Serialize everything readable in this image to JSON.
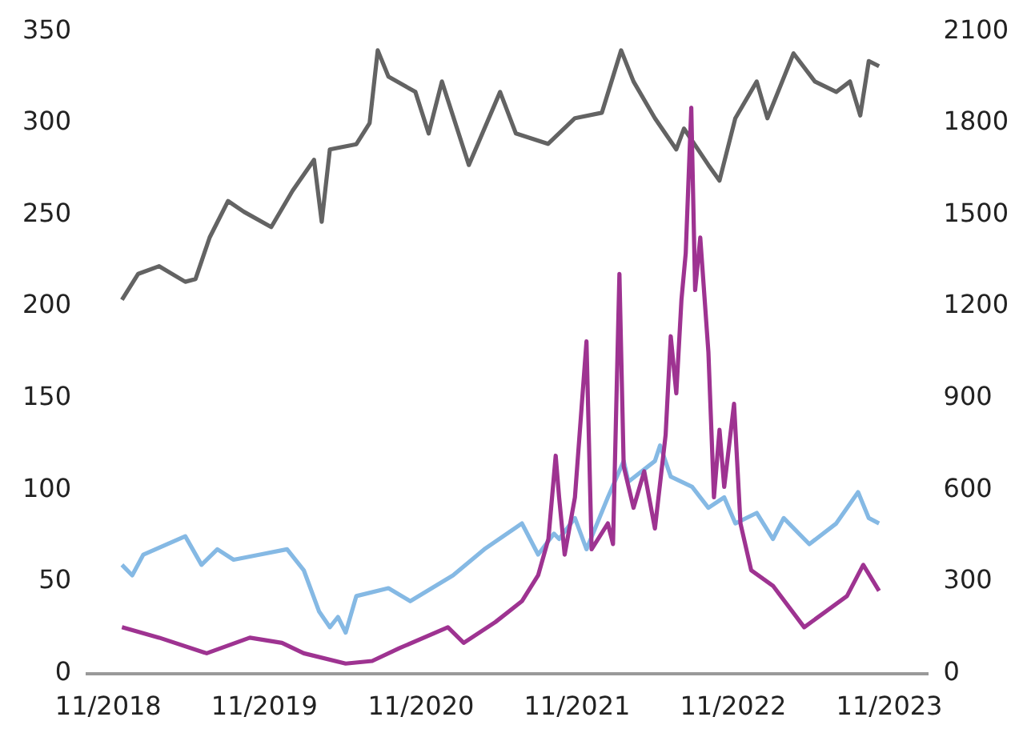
{
  "chart_data": {
    "type": "line",
    "xlim": [
      "2018-09-13",
      "2024-01-29"
    ],
    "xticks": [
      {
        "value": "2018-11-01",
        "label": "11/2018"
      },
      {
        "value": "2019-11-01",
        "label": "11/2019"
      },
      {
        "value": "2020-11-01",
        "label": "11/2020"
      },
      {
        "value": "2021-11-01",
        "label": "11/2021"
      },
      {
        "value": "2022-11-01",
        "label": "11/2022"
      },
      {
        "value": "2023-11-01",
        "label": "11/2023"
      }
    ],
    "ylim": [
      0,
      350
    ],
    "yticks": [
      0,
      50,
      100,
      150,
      200,
      250,
      300,
      350
    ],
    "y2lim": [
      0,
      2100
    ],
    "y2ticks": [
      0,
      300,
      600,
      900,
      1200,
      1500,
      1800,
      2100
    ],
    "grid": false,
    "legend": false,
    "marker": "none",
    "line_style": "solid",
    "series": [
      {
        "color": "#636363",
        "axis": "y2",
        "x": [
          "2018-12-03",
          "2019-01-10",
          "2019-02-28",
          "2019-04-30",
          "2019-05-24",
          "2019-06-26",
          "2019-08-08",
          "2019-09-14",
          "2019-11-17",
          "2020-01-06",
          "2020-02-25",
          "2020-03-14",
          "2020-04-02",
          "2020-06-03",
          "2020-07-04",
          "2020-07-23",
          "2020-08-17",
          "2020-10-19",
          "2020-11-19",
          "2020-12-20",
          "2021-02-21",
          "2021-05-05",
          "2021-06-11",
          "2021-08-25",
          "2021-10-27",
          "2021-12-29",
          "2022-02-12",
          "2022-03-13",
          "2022-05-02",
          "2022-06-21",
          "2022-07-09",
          "2022-09-04",
          "2022-09-30",
          "2022-11-06",
          "2022-12-26",
          "2023-01-20",
          "2023-03-22",
          "2023-05-11",
          "2023-06-30",
          "2023-08-01",
          "2023-08-25",
          "2023-09-14",
          "2023-10-08"
        ],
        "values": [
          1222,
          1307,
          1332,
          1281,
          1290,
          1426,
          1545,
          1510,
          1460,
          1579,
          1680,
          1477,
          1714,
          1731,
          1800,
          2038,
          1952,
          1902,
          1766,
          1936,
          1663,
          1902,
          1766,
          1732,
          1816,
          1834,
          2038,
          1936,
          1816,
          1714,
          1782,
          1663,
          1612,
          1816,
          1936,
          1816,
          2028,
          1936,
          1902,
          1936,
          1825,
          2003,
          1986
        ]
      },
      {
        "color": "#85b9e4",
        "axis": "y",
        "x": [
          "2018-12-03",
          "2018-12-27",
          "2019-01-22",
          "2019-04-30",
          "2019-06-07",
          "2019-07-14",
          "2019-08-21",
          "2019-10-22",
          "2019-12-24",
          "2020-02-01",
          "2020-03-08",
          "2020-04-02",
          "2020-04-21",
          "2020-05-09",
          "2020-06-03",
          "2020-08-17",
          "2020-10-07",
          "2021-01-15",
          "2021-03-29",
          "2021-06-25",
          "2021-08-02",
          "2021-09-08",
          "2021-09-20",
          "2021-10-27",
          "2021-11-23",
          "2022-01-12",
          "2022-02-18",
          "2022-03-01",
          "2022-05-02",
          "2022-05-14",
          "2022-06-08",
          "2022-07-28",
          "2022-09-04",
          "2022-10-11",
          "2022-11-06",
          "2022-12-26",
          "2023-02-02",
          "2023-02-27",
          "2023-04-28",
          "2023-06-30",
          "2023-08-20",
          "2023-09-14",
          "2023-10-08"
        ],
        "values": [
          59.2,
          53.5,
          64.8,
          74.8,
          59.2,
          67.7,
          62,
          64.8,
          67.7,
          56.3,
          33.7,
          25.2,
          30.8,
          22.3,
          42.2,
          46.5,
          39.4,
          53.5,
          67.7,
          81.8,
          64.8,
          76.2,
          73.3,
          84.7,
          67.7,
          96,
          115.8,
          104.5,
          115.8,
          124.3,
          107.3,
          101.7,
          90.3,
          96,
          81.8,
          87.5,
          73.3,
          84.7,
          70.5,
          81.8,
          98.8,
          84.7,
          81.8
        ]
      },
      {
        "color": "#9e3391",
        "axis": "y",
        "x": [
          "2018-12-03",
          "2019-02-28",
          "2019-06-19",
          "2019-09-28",
          "2019-12-12",
          "2020-02-01",
          "2020-05-09",
          "2020-07-10",
          "2020-09-12",
          "2021-01-03",
          "2021-02-09",
          "2021-04-24",
          "2021-06-25",
          "2021-08-02",
          "2021-08-26",
          "2021-09-12",
          "2021-09-20",
          "2021-10-03",
          "2021-10-27",
          "2021-11-23",
          "2021-12-05",
          "2022-01-12",
          "2022-01-24",
          "2022-02-08",
          "2022-02-18",
          "2022-03-13",
          "2022-04-07",
          "2022-05-02",
          "2022-05-27",
          "2022-06-08",
          "2022-06-21",
          "2022-07-03",
          "2022-07-13",
          "2022-07-26",
          "2022-08-04",
          "2022-08-16",
          "2022-09-04",
          "2022-09-17",
          "2022-09-30",
          "2022-10-11",
          "2022-11-03",
          "2022-11-18",
          "2022-12-13",
          "2023-02-02",
          "2023-04-16",
          "2023-06-05",
          "2023-07-25",
          "2023-09-01",
          "2023-10-08"
        ],
        "values": [
          25.2,
          19.5,
          11,
          19.5,
          16.7,
          11,
          5.4,
          6.8,
          13.8,
          25.2,
          16.7,
          28,
          39.4,
          53.5,
          73.3,
          118.7,
          96,
          64.8,
          96,
          181,
          67.7,
          81.8,
          70.5,
          217.8,
          113,
          90.3,
          110.2,
          79,
          130,
          183.8,
          152.7,
          203.6,
          229,
          308.4,
          209,
          237.6,
          175.3,
          96,
          132.8,
          101.7,
          147,
          81.8,
          56.3,
          47.8,
          25.2,
          33.7,
          42.2,
          59.2,
          45
        ]
      }
    ]
  }
}
